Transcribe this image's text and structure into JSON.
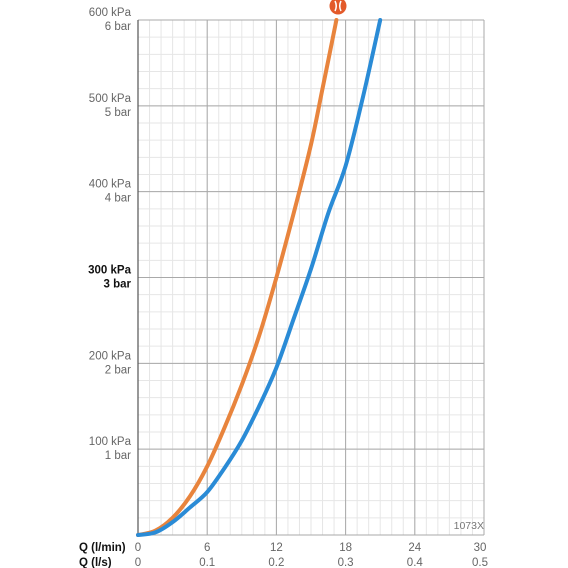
{
  "chart_data": {
    "type": "line",
    "product_code": "1073X",
    "legend": [
      {
        "icon": "shower-handle-icon",
        "color": "#e35a2a"
      }
    ],
    "y_axis": {
      "range": [
        0,
        600
      ],
      "unit": "kPa",
      "ticks": [
        {
          "value": 100,
          "kpa": "100 kPa",
          "bar": "1 bar",
          "bold": false
        },
        {
          "value": 200,
          "kpa": "200 kPa",
          "bar": "2 bar",
          "bold": false
        },
        {
          "value": 300,
          "kpa": "300 kPa",
          "bar": "3 bar",
          "bold": true
        },
        {
          "value": 400,
          "kpa": "400 kPa",
          "bar": "4 bar",
          "bold": false
        },
        {
          "value": 500,
          "kpa": "500 kPa",
          "bar": "5 bar",
          "bold": false
        },
        {
          "value": 600,
          "kpa": "600 kPa",
          "bar": "6 bar",
          "bold": false
        }
      ]
    },
    "x_axis": {
      "range": [
        0,
        30
      ],
      "label_lmin": "Q (l/min)",
      "label_ls": "Q (l/s)",
      "ticks_lmin": [
        "0",
        "6",
        "12",
        "18",
        "24",
        "30"
      ],
      "ticks_ls": [
        "0",
        "0.1",
        "0.2",
        "0.3",
        "0.4",
        "0.5"
      ],
      "tick_values": [
        0,
        6,
        12,
        18,
        24,
        30
      ]
    },
    "grid": true,
    "series": [
      {
        "color": "#e8843d",
        "points": [
          [
            0,
            0
          ],
          [
            1.5,
            5
          ],
          [
            3,
            20
          ],
          [
            4.5,
            45
          ],
          [
            6,
            80
          ],
          [
            7.5,
            125
          ],
          [
            9,
            175
          ],
          [
            10.5,
            232
          ],
          [
            12,
            300
          ],
          [
            13.5,
            375
          ],
          [
            15,
            455
          ],
          [
            16,
            520
          ],
          [
            17.2,
            600
          ]
        ]
      },
      {
        "color": "#2a8bd6",
        "points": [
          [
            0,
            0
          ],
          [
            1.5,
            3
          ],
          [
            3,
            15
          ],
          [
            4.5,
            32
          ],
          [
            6,
            50
          ],
          [
            7.5,
            78
          ],
          [
            9,
            110
          ],
          [
            10.5,
            150
          ],
          [
            12,
            195
          ],
          [
            13.5,
            252
          ],
          [
            15,
            310
          ],
          [
            16.5,
            375
          ],
          [
            18,
            430
          ],
          [
            19.5,
            510
          ],
          [
            21,
            600
          ]
        ]
      }
    ]
  }
}
